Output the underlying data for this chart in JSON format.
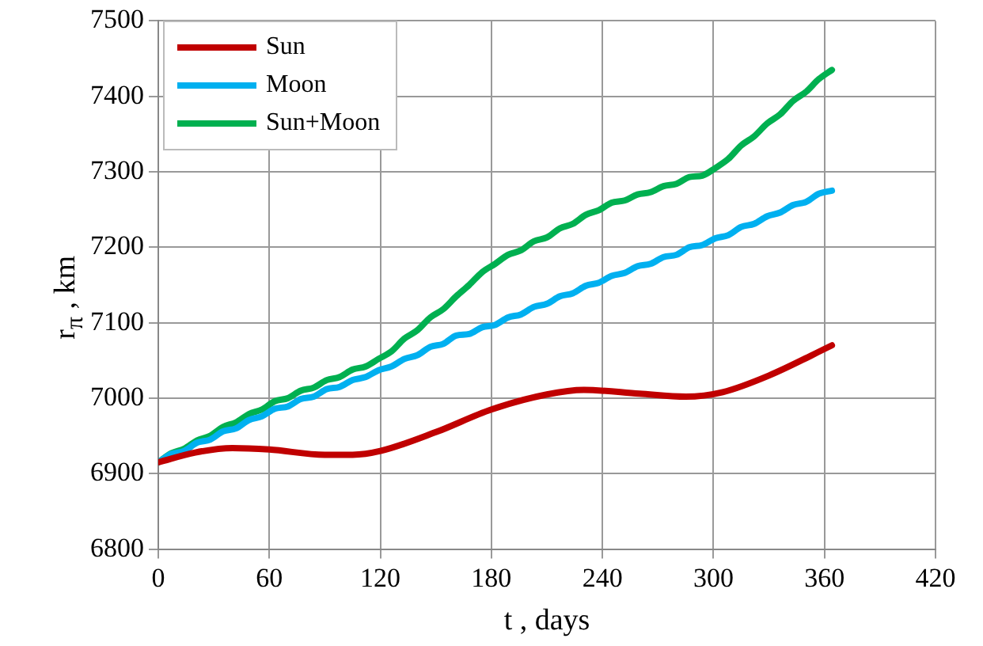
{
  "chart_data": {
    "type": "line",
    "xlabel": "t , days",
    "ylabel": "r$_{π}$ , km",
    "xlim": [
      0,
      420
    ],
    "xticks": [
      0,
      60,
      120,
      180,
      240,
      300,
      360,
      420
    ],
    "ylim": [
      6800,
      7500
    ],
    "yticks": [
      6800,
      6900,
      7000,
      7100,
      7200,
      7300,
      7400,
      7500
    ],
    "grid": true,
    "legend": "top left",
    "marker": "none",
    "line_style": "solid",
    "x": [
      0,
      7,
      14,
      21,
      28,
      35,
      42,
      49,
      56,
      63,
      70,
      77,
      84,
      91,
      98,
      105,
      112,
      119,
      126,
      133,
      140,
      147,
      154,
      161,
      168,
      175,
      182,
      189,
      196,
      203,
      210,
      217,
      224,
      231,
      238,
      245,
      252,
      259,
      266,
      273,
      280,
      287,
      294,
      301,
      308,
      315,
      322,
      329,
      336,
      343,
      350,
      357,
      364
    ],
    "series": [
      {
        "name": "Sun",
        "color": "#c00000",
        "x": [
          0,
          20,
          40,
          60,
          90,
          105,
          120,
          150,
          180,
          210,
          230,
          260,
          285,
          305,
          330,
          364
        ],
        "values": [
          6915,
          6928,
          6934,
          6932,
          6925,
          6925,
          6930,
          6955,
          6985,
          7005,
          7011,
          7006,
          7002,
          7008,
          7030,
          7070
        ]
      },
      {
        "name": "Moon",
        "color": "#00b0f0",
        "values": [
          6915,
          6926,
          6930,
          6941,
          6945,
          6956,
          6960,
          6971,
          6976,
          6986,
          6989,
          6999,
          7002,
          7012,
          7015,
          7024,
          7028,
          7037,
          7042,
          7052,
          7057,
          7068,
          7072,
          7083,
          7085,
          7094,
          7097,
          7107,
          7111,
          7121,
          7125,
          7135,
          7139,
          7149,
          7153,
          7162,
          7166,
          7175,
          7178,
          7187,
          7190,
          7200,
          7203,
          7212,
          7216,
          7227,
          7231,
          7241,
          7246,
          7256,
          7260,
          7271,
          7275
        ]
      },
      {
        "name": "Sun+Moon",
        "color": "#00b050",
        "values": [
          6915,
          6927,
          6933,
          6944,
          6950,
          6962,
          6968,
          6979,
          6985,
          6996,
          7000,
          7010,
          7014,
          7024,
          7028,
          7038,
          7042,
          7052,
          7062,
          7079,
          7090,
          7107,
          7118,
          7135,
          7150,
          7167,
          7178,
          7190,
          7196,
          7208,
          7213,
          7225,
          7231,
          7243,
          7249,
          7259,
          7262,
          7270,
          7273,
          7281,
          7284,
          7293,
          7295,
          7305,
          7317,
          7335,
          7347,
          7364,
          7376,
          7394,
          7406,
          7423,
          7435
        ]
      }
    ]
  }
}
